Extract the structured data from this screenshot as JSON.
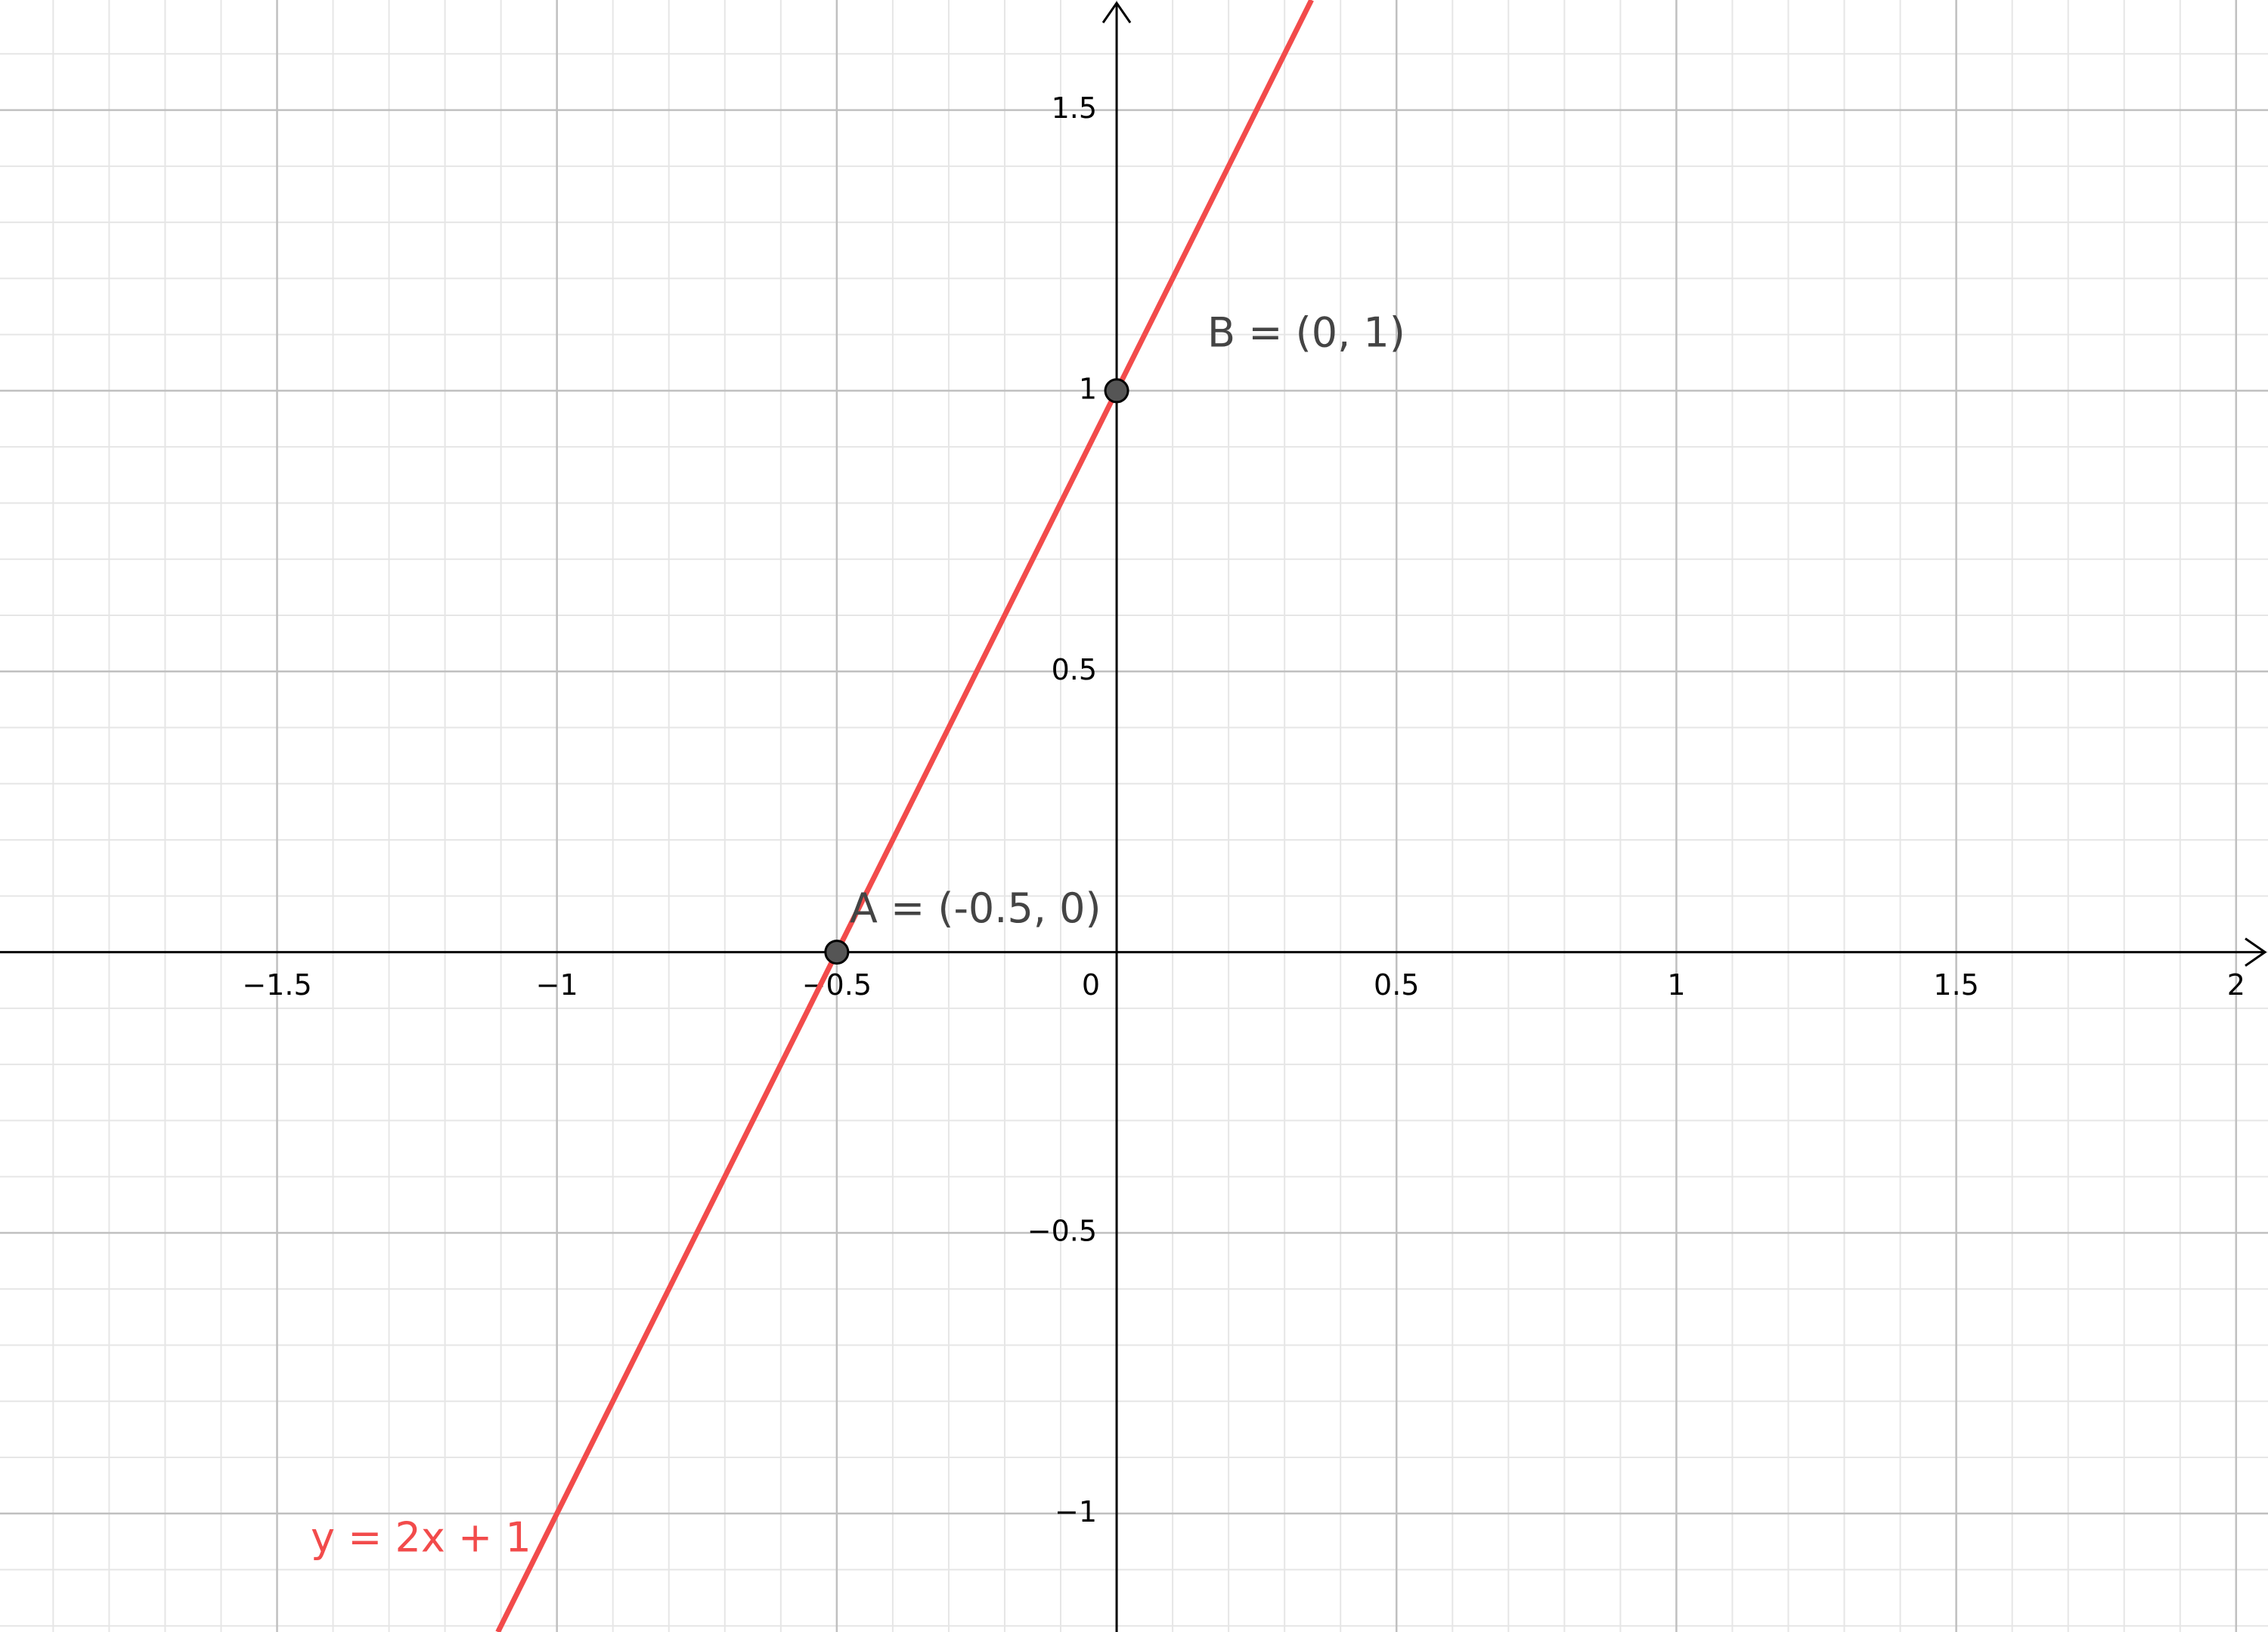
{
  "chart_data": {
    "type": "line",
    "xlim": [
      -1.995,
      2.057
    ],
    "ylim": [
      -1.211,
      1.696
    ],
    "xticks": [
      {
        "value": -1.5,
        "label": "−1.5"
      },
      {
        "value": -1,
        "label": "−1"
      },
      {
        "value": -0.5,
        "label": "−0.5"
      },
      0,
      0.5,
      1,
      1.5,
      2
    ],
    "yticks": [
      {
        "value": -1,
        "label": "−1"
      },
      {
        "value": -0.5,
        "label": "−0.5"
      },
      0.5,
      1,
      1.5
    ],
    "grid": true,
    "series": [
      {
        "name": "y = 2x + 1",
        "color": "#f24b4b",
        "x": [
          -0.5,
          0
        ],
        "values": [
          0,
          1
        ],
        "point_labels": [
          "A = (-0.5, 0)",
          "B = (0, 1)"
        ]
      }
    ]
  }
}
